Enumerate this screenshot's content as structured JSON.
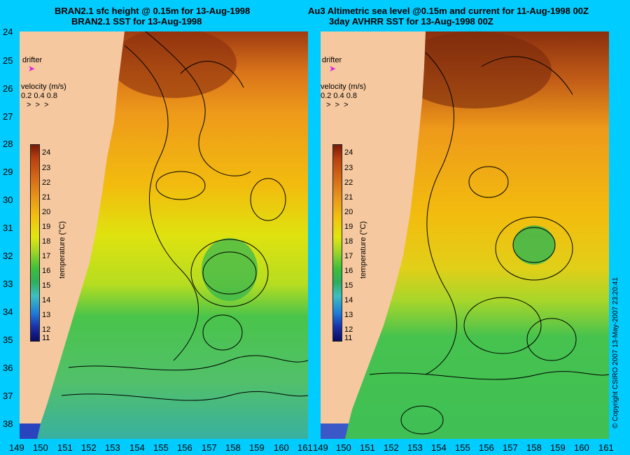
{
  "left": {
    "title1": "BRAN2.1 sfc height @ 0.15m for 13-Aug-1998",
    "title2": "BRAN2.1 SST for 13-Aug-1998"
  },
  "right": {
    "title1": "Au3 Altimetric sea level  @0.15m and current for 11-Aug-1998 00Z",
    "title2": "3day AVHRR SST for 13-Aug-1998 00Z"
  },
  "legend": {
    "drifter": "drifter",
    "velocity_title": "velocity (m/s)",
    "velocity_values": "0.2 0.4 0.8",
    "colorbar_title": "temperature (°C)",
    "colorbar_ticks": [
      "24",
      "23",
      "22",
      "21",
      "20",
      "19",
      "18",
      "17",
      "16",
      "15",
      "14",
      "13",
      "12",
      "11"
    ]
  },
  "axes": {
    "lat": [
      "24",
      "25",
      "26",
      "27",
      "28",
      "29",
      "30",
      "31",
      "32",
      "33",
      "34",
      "35",
      "36",
      "37",
      "38"
    ],
    "lon_left": [
      "149",
      "150",
      "151",
      "152",
      "153",
      "154",
      "155",
      "156",
      "157",
      "158",
      "159",
      "160",
      "161"
    ],
    "lon_right": [
      "149",
      "150",
      "151",
      "152",
      "153",
      "154",
      "155",
      "156",
      "157",
      "158",
      "159",
      "160",
      "161"
    ]
  },
  "copyright": "© Copyright CSIRO 2007  13-May-2007 23:20:41",
  "colors": {
    "background": "#00ccff",
    "land": "#f5c89f",
    "warm": "#9e3a10",
    "cool": "#1a2fa8"
  }
}
